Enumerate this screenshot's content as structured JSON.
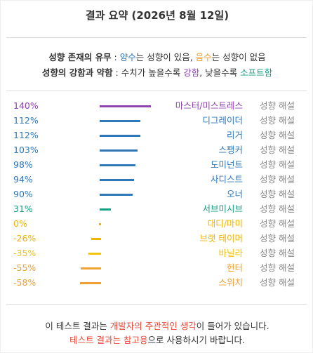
{
  "header": {
    "title": "결과 요약 (2026년 8월 12일)"
  },
  "legend": [
    [
      "성향 존재의 유무",
      " : ",
      "양수",
      "는 성향이 있음, ",
      "음수",
      "는 성향이 없음"
    ],
    [
      "성향의 강함과 약함",
      " : 수치가 높을수록 ",
      "강함",
      ", 낮을수록 ",
      "소프트함"
    ]
  ],
  "results": {
    "values": [
      140,
      112,
      112,
      103,
      98,
      94,
      90,
      31,
      0,
      -26,
      -35,
      -55,
      -58
    ],
    "value_labels": [
      "140%",
      "112%",
      "112%",
      "103%",
      "98%",
      "94%",
      "90%",
      "31%",
      "0%",
      "-26%",
      "-35%",
      "-55%",
      "-58%"
    ],
    "names": [
      "마스터/미스트레스",
      "디그레이더",
      "리거",
      "스팽커",
      "도미넌트",
      "사디스트",
      "오너",
      "서브미시브",
      "대디/마미",
      "브랫 테이머",
      "바닐라",
      "헌터",
      "스위치"
    ],
    "colors": [
      "#8e44ad",
      "#2e78b7",
      "#2e78b7",
      "#2e78b7",
      "#2e78b7",
      "#2e78b7",
      "#2e78b7",
      "#16a085",
      "#f1b400",
      "#f1b400",
      "#f1c40f",
      "#f0a030",
      "#f0a030"
    ],
    "detail_link": "성향 해설"
  },
  "footer": [
    [
      "이 테스트 결과는 ",
      "개발자의 주관적인 생각",
      "이 들어가 있습니다."
    ],
    [
      "테스트 결과는 참고용",
      "으로 사용하시기 바랍니다."
    ]
  ]
}
